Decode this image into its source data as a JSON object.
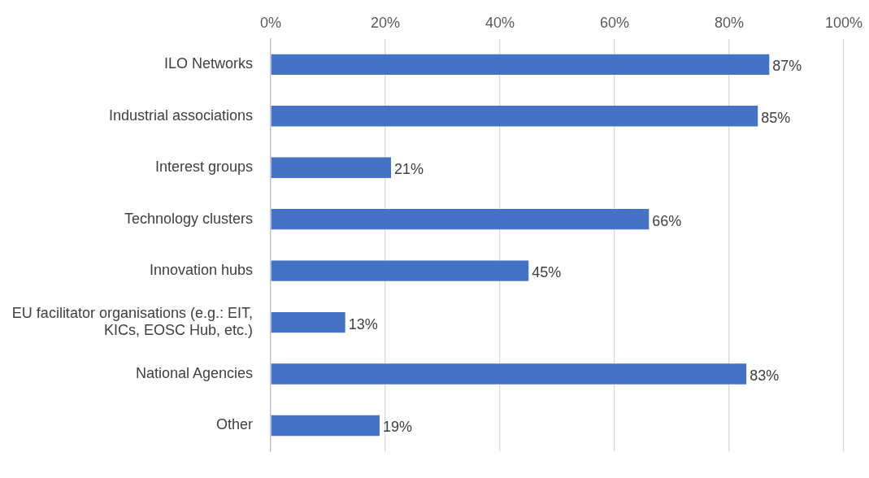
{
  "chart_data": {
    "type": "bar",
    "orientation": "horizontal",
    "categories": [
      "ILO Networks",
      "Industrial associations",
      "Interest groups",
      "Technology clusters",
      "Innovation hubs",
      "EU facilitator organisations (e.g.: EIT, KICs, EOSC Hub, etc.)",
      "National Agencies",
      "Other"
    ],
    "values": [
      87,
      85,
      21,
      66,
      45,
      13,
      83,
      19
    ],
    "value_labels": [
      "87%",
      "85%",
      "21%",
      "66%",
      "45%",
      "13%",
      "83%",
      "19%"
    ],
    "color": "#4472c4",
    "xlim": [
      0,
      100
    ],
    "xticks": [
      {
        "value": 0,
        "label": "0%"
      },
      {
        "value": 20,
        "label": "20%"
      },
      {
        "value": 40,
        "label": "40%"
      },
      {
        "value": 60,
        "label": "60%"
      },
      {
        "value": 80,
        "label": "80%"
      },
      {
        "value": 100,
        "label": "100%"
      }
    ],
    "grid": "x",
    "legend": false
  }
}
